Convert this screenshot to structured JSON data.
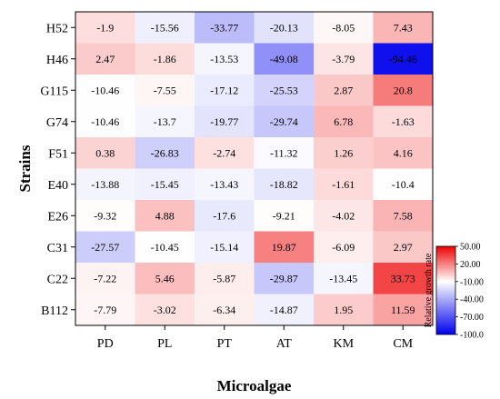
{
  "chart_data": {
    "type": "heatmap",
    "title": "",
    "xlabel": "Microalgae",
    "ylabel": "Strains",
    "x_categories": [
      "PD",
      "PL",
      "PT",
      "AT",
      "KM",
      "CM"
    ],
    "y_categories": [
      "H52",
      "H46",
      "G115",
      "G74",
      "F51",
      "E40",
      "E26",
      "C31",
      "C22",
      "B112"
    ],
    "values": [
      [
        -1.9,
        -15.56,
        -33.77,
        -20.13,
        -8.05,
        7.43
      ],
      [
        2.47,
        -1.86,
        -13.53,
        -49.08,
        -3.79,
        -94.46
      ],
      [
        -10.46,
        -7.55,
        -17.12,
        -25.53,
        2.87,
        20.8
      ],
      [
        -10.46,
        -13.7,
        -19.77,
        -29.74,
        6.78,
        -1.63
      ],
      [
        0.38,
        -26.83,
        -2.74,
        -11.32,
        1.26,
        4.16
      ],
      [
        -13.88,
        -15.45,
        -13.43,
        -18.82,
        -1.61,
        -10.4
      ],
      [
        -9.32,
        4.88,
        -17.6,
        -9.21,
        -4.02,
        7.58
      ],
      [
        -27.57,
        -10.45,
        -15.14,
        19.87,
        -6.09,
        2.97
      ],
      [
        -7.22,
        5.46,
        -5.87,
        -29.87,
        -13.45,
        33.73
      ],
      [
        -7.79,
        -3.02,
        -6.34,
        -14.87,
        1.95,
        11.59
      ]
    ],
    "value_labels": [
      [
        "-1.9",
        "-15.56",
        "-33.77",
        "-20.13",
        "-8.05",
        "7.43"
      ],
      [
        "2.47",
        "-1.86",
        "-13.53",
        "-49.08",
        "-3.79",
        "-94.46"
      ],
      [
        "-10.46",
        "-7.55",
        "-17.12",
        "-25.53",
        "2.87",
        "20.8"
      ],
      [
        "-10.46",
        "-13.7",
        "-19.77",
        "-29.74",
        "6.78",
        "-1.63"
      ],
      [
        "0.38",
        "-26.83",
        "-2.74",
        "-11.32",
        "1.26",
        "4.16"
      ],
      [
        "-13.88",
        "-15.45",
        "-13.43",
        "-18.82",
        "-1.61",
        "-10.4"
      ],
      [
        "-9.32",
        "4.88",
        "-17.6",
        "-9.21",
        "-4.02",
        "7.58"
      ],
      [
        "-27.57",
        "-10.45",
        "-15.14",
        "19.87",
        "-6.09",
        "2.97"
      ],
      [
        "-7.22",
        "5.46",
        "-5.87",
        "-29.87",
        "-13.45",
        "33.73"
      ],
      [
        "-7.79",
        "-3.02",
        "-6.34",
        "-14.87",
        "1.95",
        "11.59"
      ]
    ],
    "colorbar": {
      "label": "Relative growth rate",
      "range": [
        -100,
        50
      ],
      "ticks": [
        50,
        20,
        -10,
        -40,
        -70,
        -100
      ],
      "tick_labels": [
        "50.00",
        "20.00",
        "-10.00",
        "-40.00",
        "-70.00",
        "-100.0"
      ],
      "color_min": "#0000ee",
      "color_mid": "#ffffff",
      "color_max": "#ee0000",
      "midpoint": -10
    },
    "grid": false
  }
}
